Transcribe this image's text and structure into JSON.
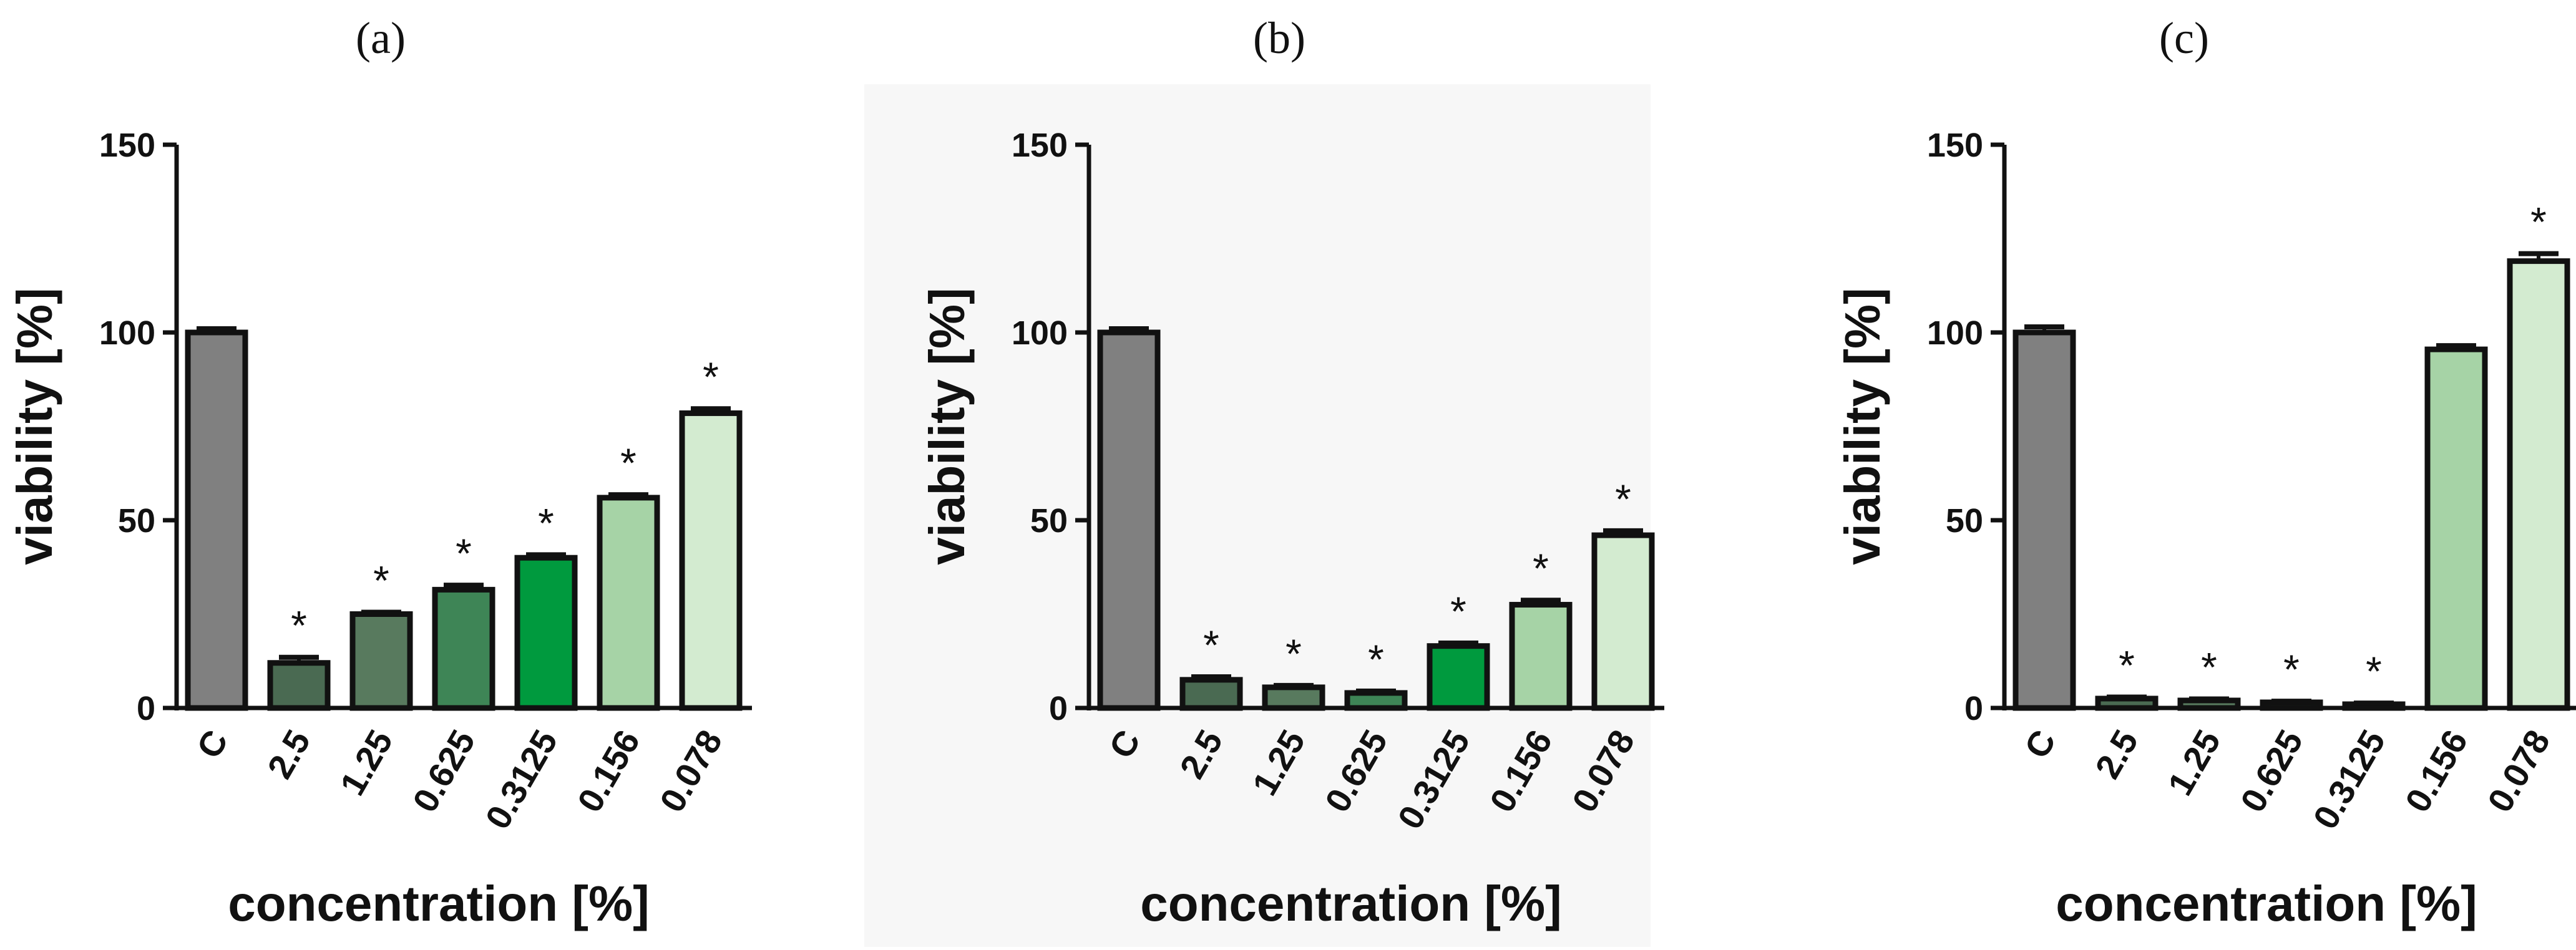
{
  "chart_data": [
    {
      "type": "bar",
      "panel_label": "(a)",
      "categories": [
        "C",
        "2.5",
        "1.25",
        "0.625",
        "0.3125",
        "0.156",
        "0.078"
      ],
      "values": [
        100,
        12,
        25,
        31.5,
        40,
        56,
        78.5
      ],
      "errors": [
        1,
        1.5,
        0.5,
        1.2,
        0.8,
        0.8,
        1.2
      ],
      "significance": [
        "",
        "*",
        "*",
        "*",
        "*",
        "*",
        "*"
      ],
      "colors": [
        "#808080",
        "#4a6a52",
        "#587a5e",
        "#3e8556",
        "#009a3e",
        "#a6d3a6",
        "#d3ebd0"
      ],
      "xlabel": "concentration [%]",
      "ylabel": "viability [%]",
      "ylim": [
        0,
        150
      ],
      "yticks": [
        "0",
        "50",
        "100",
        "150"
      ]
    },
    {
      "type": "bar",
      "panel_label": "(b)",
      "categories": [
        "C",
        "2.5",
        "1.25",
        "0.625",
        "0.3125",
        "0.156",
        "0.078"
      ],
      "values": [
        100,
        7.5,
        5.5,
        4,
        16.5,
        27.5,
        46
      ],
      "errors": [
        1,
        0.8,
        0.5,
        0.5,
        0.8,
        1.2,
        1.2
      ],
      "significance": [
        "",
        "*",
        "*",
        "*",
        "*",
        "*",
        "*"
      ],
      "colors": [
        "#808080",
        "#4a6a52",
        "#587a5e",
        "#3e8556",
        "#009a3e",
        "#a6d3a6",
        "#d3ebd0"
      ],
      "xlabel": "concentration [%]",
      "ylabel": "viability [%]",
      "ylim": [
        0,
        150
      ],
      "yticks": [
        "0",
        "50",
        "100",
        "150"
      ]
    },
    {
      "type": "bar",
      "panel_label": "(c)",
      "categories": [
        "C",
        "2.5",
        "1.25",
        "0.625",
        "0.3125",
        "0.156",
        "0.078"
      ],
      "values": [
        100,
        2.5,
        2,
        1.5,
        1,
        95.5,
        119
      ],
      "errors": [
        1.5,
        0.4,
        0.4,
        0.3,
        0.3,
        1,
        2
      ],
      "significance": [
        "",
        "*",
        "*",
        "*",
        "*",
        "",
        "*"
      ],
      "colors": [
        "#808080",
        "#4a6a52",
        "#587a5e",
        "#3e8556",
        "#009a3e",
        "#a6d3a6",
        "#d3ebd0"
      ],
      "xlabel": "concentration [%]",
      "ylabel": "viability [%]",
      "ylim": [
        0,
        150
      ],
      "yticks": [
        "0",
        "50",
        "100",
        "150"
      ]
    }
  ]
}
